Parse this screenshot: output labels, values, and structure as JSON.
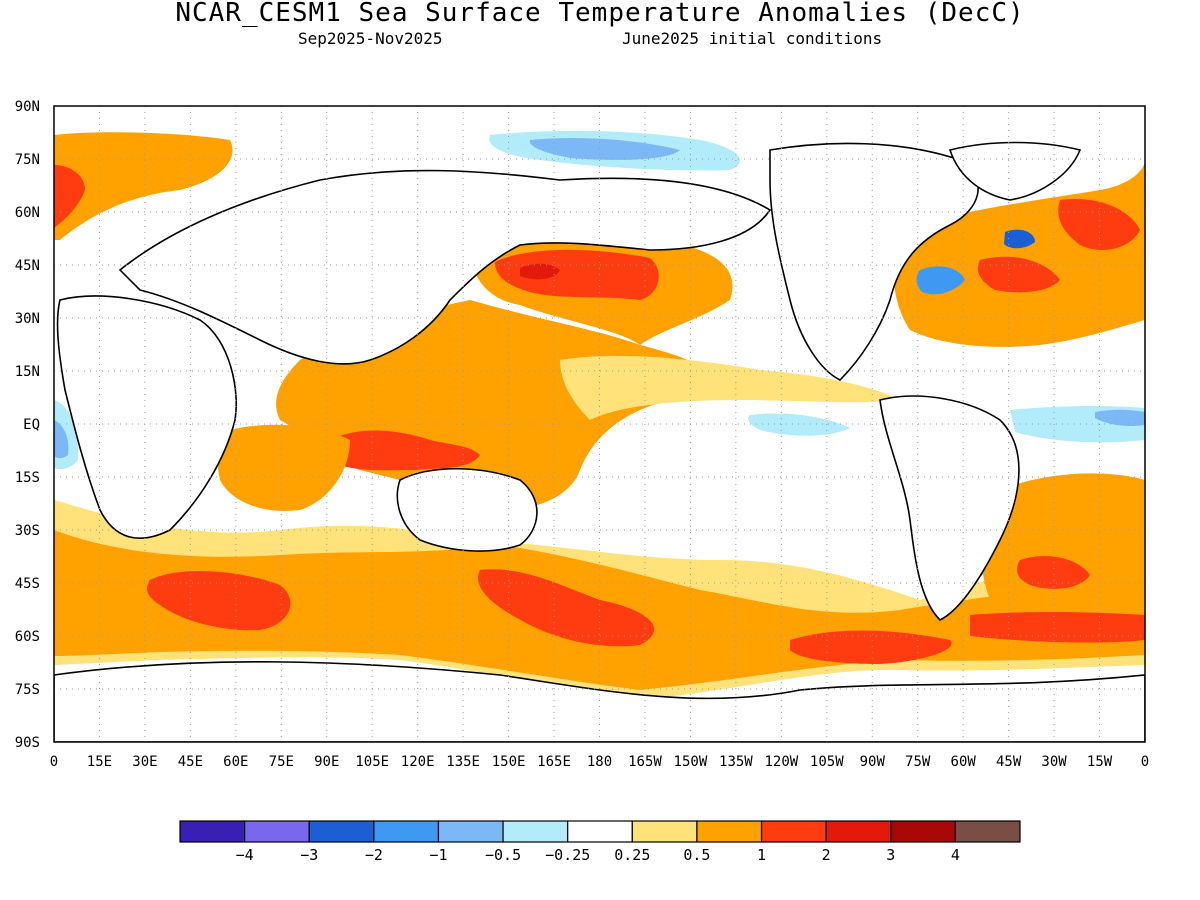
{
  "header": {
    "title": "NCAR_CESM1 Sea Surface Temperature Anomalies (DecC)",
    "period": "Sep2025-Nov2025",
    "init": "June2025 initial conditions"
  },
  "axes": {
    "lat_labels": [
      "90N",
      "75N",
      "60N",
      "45N",
      "30N",
      "15N",
      "EQ",
      "15S",
      "30S",
      "45S",
      "60S",
      "75S",
      "90S"
    ],
    "lon_labels": [
      "0",
      "15E",
      "30E",
      "45E",
      "60E",
      "75E",
      "90E",
      "105E",
      "120E",
      "135E",
      "150E",
      "165E",
      "180",
      "165W",
      "150W",
      "135W",
      "120W",
      "105W",
      "90W",
      "75W",
      "60W",
      "45W",
      "30W",
      "15W",
      "0"
    ],
    "grid": "dotted"
  },
  "colorbar": {
    "colors": [
      "#3a1fb4",
      "#7a68ec",
      "#1c5fd4",
      "#3f98f2",
      "#7db8f6",
      "#b2ecfa",
      "#ffffff",
      "#ffe27a",
      "#ffa200",
      "#ff3c0f",
      "#e31a0b",
      "#a80808",
      "#7a4e44"
    ],
    "labels": [
      "−4",
      "−3",
      "−2",
      "−1",
      "−0.5",
      "−0.25",
      "0.25",
      "0.5",
      "1",
      "2",
      "3",
      "4"
    ]
  },
  "legend_colors": {
    "p025": "#ffe27a",
    "p05": "#ffa200",
    "p1": "#ff3c0f",
    "p2": "#e31a0b",
    "m025": "#b2ecfa",
    "m05": "#7db8f6",
    "m1": "#3f98f2",
    "m2": "#1c5fd4"
  }
}
